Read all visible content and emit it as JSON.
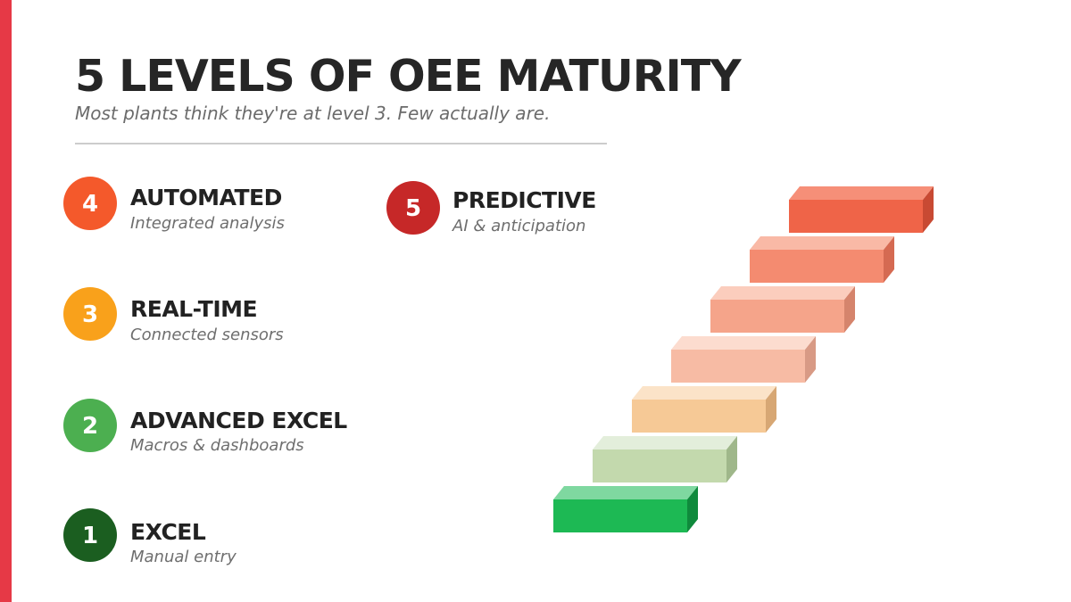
{
  "header": {
    "title": "5 LEVELS OF OEE MATURITY",
    "subtitle": "Most plants think they're at level 3. Few actually are."
  },
  "levels": [
    {
      "number": 4,
      "title": "AUTOMATED",
      "description": "Integrated analysis"
    },
    {
      "number": 3,
      "title": "REAL-TIME",
      "description": "Connected sensors"
    },
    {
      "number": 2,
      "title": "ADVANCED EXCEL",
      "description": "Macros & dashboards"
    },
    {
      "number": 1,
      "title": "EXCEL",
      "description": "Manual entry"
    },
    {
      "number": 5,
      "title": "PREDICTIVE",
      "description": "AI & anticipation"
    }
  ]
}
